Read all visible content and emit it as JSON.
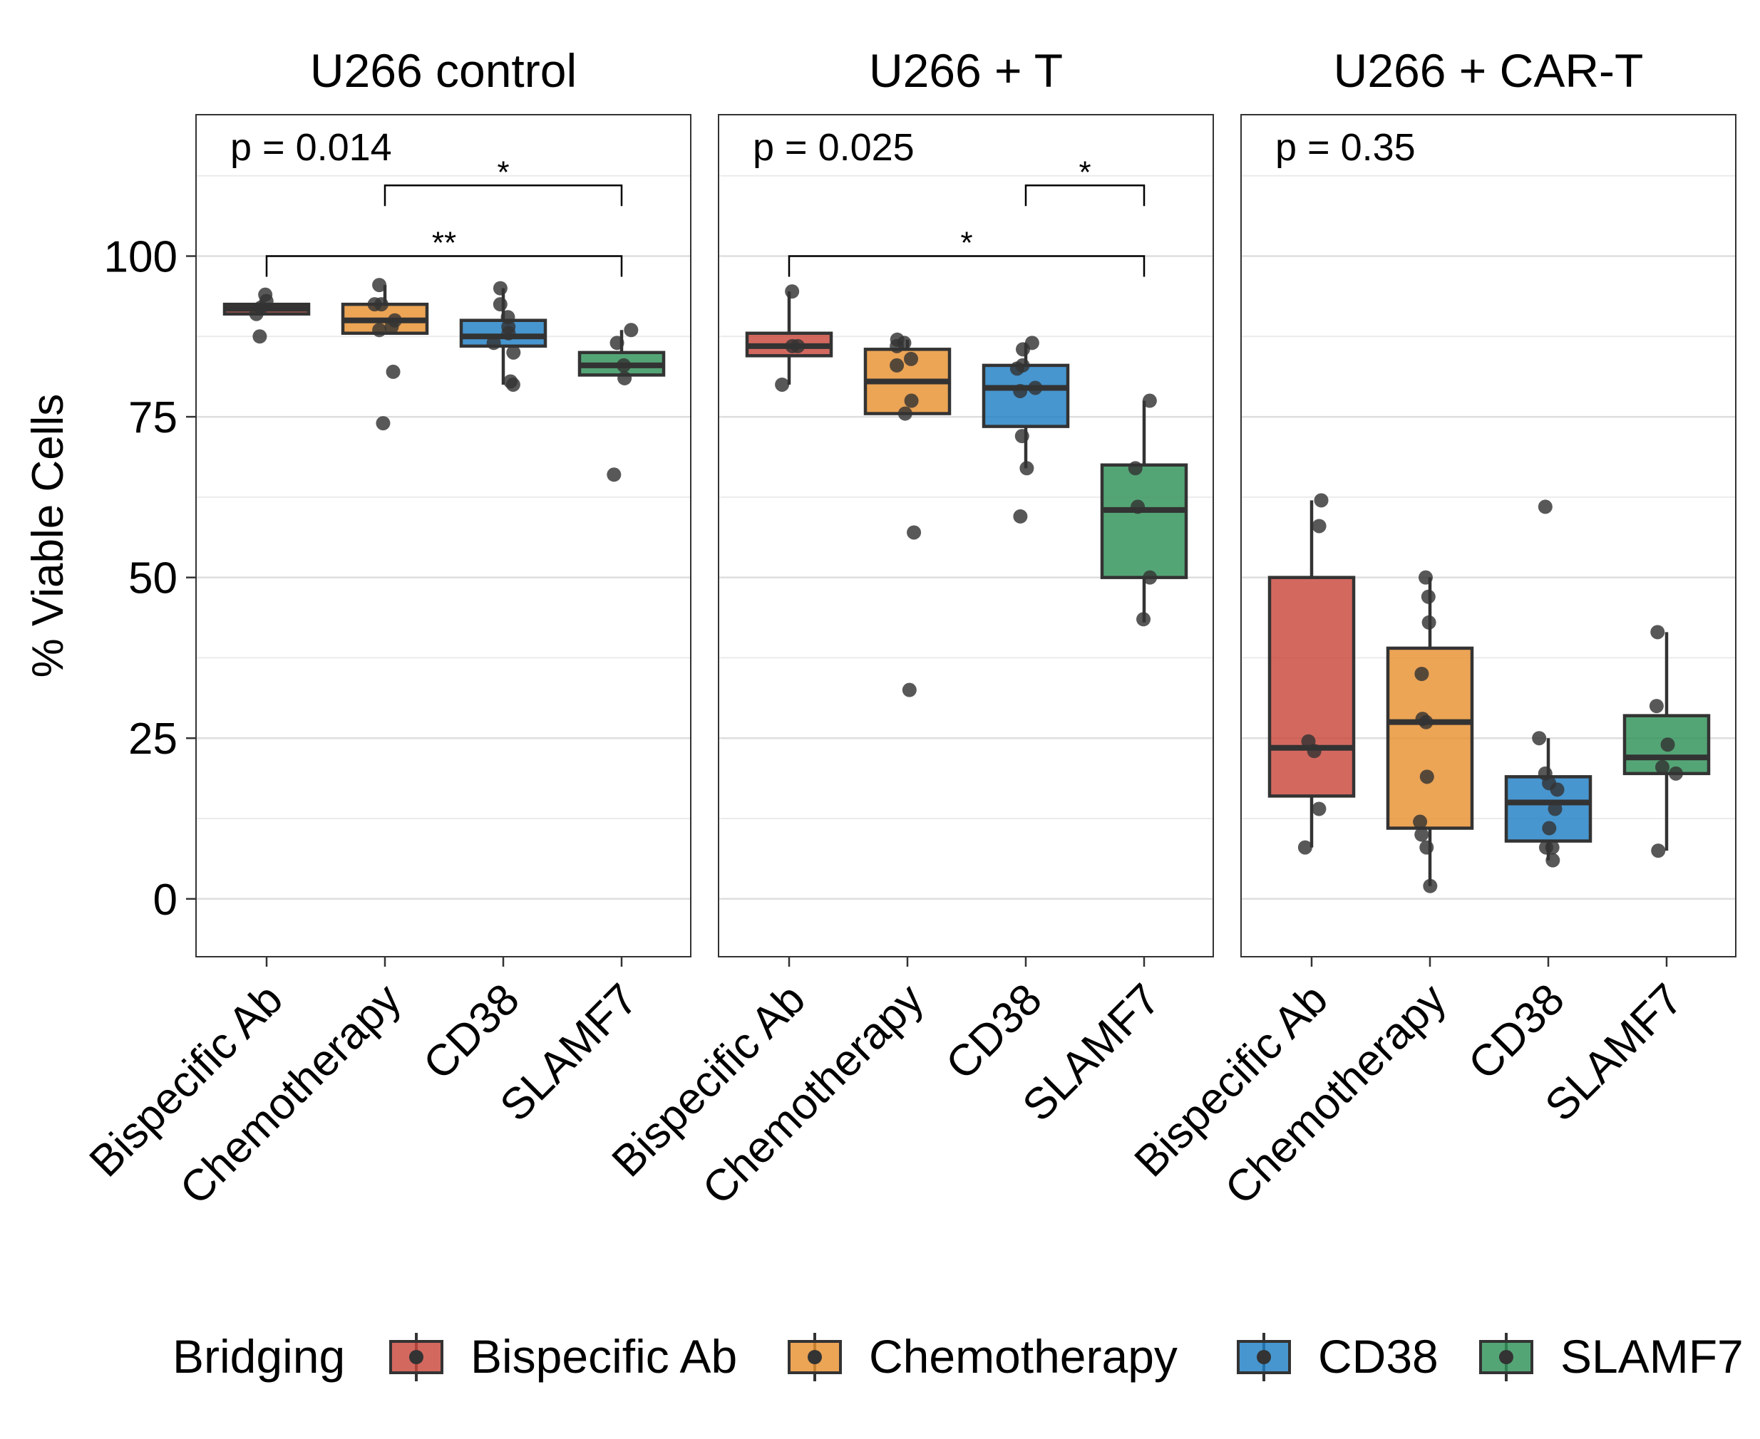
{
  "chart_data": {
    "type": "box",
    "ylabel": "% Viable Cells",
    "ylim": [
      -9,
      122
    ],
    "yticks": [
      0,
      25,
      50,
      75,
      100
    ],
    "categories": [
      "Bispecific Ab",
      "Chemotherapy",
      "CD38",
      "SLAMF7"
    ],
    "legend": {
      "title": "Bridging",
      "position": "bottom",
      "entries": [
        "Bispecific Ab",
        "Chemotherapy",
        "CD38",
        "SLAMF7"
      ]
    },
    "colors": {
      "Bispecific Ab": "#c9473c",
      "Chemotherapy": "#e8902f",
      "CD38": "#1f7fc4",
      "SLAMF7": "#2e9158"
    },
    "grid": "horizontal",
    "panels": [
      {
        "title": "U266 control",
        "pvalue": "p = 0.014",
        "brackets": [
          {
            "from": "Chemotherapy",
            "to": "SLAMF7",
            "y": 111,
            "label": "*"
          },
          {
            "from": "Bispecific Ab",
            "to": "SLAMF7",
            "y": 100,
            "label": "**"
          }
        ],
        "boxes": [
          {
            "category": "Bispecific Ab",
            "q1": 91,
            "median": 91.8,
            "q3": 92.5,
            "whisker_low": 91,
            "whisker_high": 92.5,
            "points": [
              94,
              93,
              92,
              91,
              87.5
            ]
          },
          {
            "category": "Chemotherapy",
            "q1": 88,
            "median": 90,
            "q3": 92.5,
            "whisker_low": 88,
            "whisker_high": 95.5,
            "points": [
              95.5,
              92.5,
              92.5,
              90,
              89,
              88.5,
              82,
              74
            ]
          },
          {
            "category": "CD38",
            "q1": 86,
            "median": 87.5,
            "q3": 90,
            "whisker_low": 80,
            "whisker_high": 95,
            "points": [
              95,
              92.5,
              90.5,
              89,
              88,
              86.5,
              85,
              80.5,
              80
            ]
          },
          {
            "category": "SLAMF7",
            "q1": 81.5,
            "median": 83,
            "q3": 85,
            "whisker_low": 81.5,
            "whisker_high": 88.5,
            "points": [
              88.5,
              86.5,
              83,
              81,
              66
            ]
          }
        ]
      },
      {
        "title": "U266 + T",
        "pvalue": "p = 0.025",
        "brackets": [
          {
            "from": "CD38",
            "to": "SLAMF7",
            "y": 111,
            "label": "*"
          },
          {
            "from": "Bispecific Ab",
            "to": "SLAMF7",
            "y": 100,
            "label": "*"
          }
        ],
        "boxes": [
          {
            "category": "Bispecific Ab",
            "q1": 84.5,
            "median": 86,
            "q3": 88,
            "whisker_low": 80,
            "whisker_high": 94.5,
            "points": [
              94.5,
              86,
              86,
              80
            ]
          },
          {
            "category": "Chemotherapy",
            "q1": 75.5,
            "median": 80.5,
            "q3": 85.5,
            "whisker_low": 75.5,
            "whisker_high": 87,
            "points": [
              87,
              86.5,
              86,
              84,
              83,
              77.5,
              75.5,
              57,
              32.5
            ]
          },
          {
            "category": "CD38",
            "q1": 73.5,
            "median": 79.5,
            "q3": 83,
            "whisker_low": 67,
            "whisker_high": 86.5,
            "points": [
              86.5,
              85.5,
              83,
              82.5,
              79.5,
              79,
              72,
              67,
              59.5
            ]
          },
          {
            "category": "SLAMF7",
            "q1": 50,
            "median": 60.5,
            "q3": 67.5,
            "whisker_low": 43,
            "whisker_high": 77.5,
            "points": [
              77.5,
              67,
              61,
              50,
              43.5
            ]
          }
        ]
      },
      {
        "title": "U266 + CAR-T",
        "pvalue": "p = 0.35",
        "brackets": [],
        "boxes": [
          {
            "category": "Bispecific Ab",
            "q1": 16,
            "median": 23.5,
            "q3": 50,
            "whisker_low": 8,
            "whisker_high": 62,
            "points": [
              62,
              58,
              24.5,
              23,
              14,
              8
            ]
          },
          {
            "category": "Chemotherapy",
            "q1": 11,
            "median": 27.5,
            "q3": 39,
            "whisker_low": 2,
            "whisker_high": 50,
            "points": [
              50,
              47,
              43,
              35,
              28,
              27.5,
              19,
              12,
              10,
              8,
              2
            ]
          },
          {
            "category": "CD38",
            "q1": 9,
            "median": 15,
            "q3": 19,
            "whisker_low": 6,
            "whisker_high": 25,
            "points": [
              61,
              25,
              19.5,
              18,
              17,
              14,
              11,
              8,
              8,
              6
            ]
          },
          {
            "category": "SLAMF7",
            "q1": 19.5,
            "median": 22,
            "q3": 28.5,
            "whisker_low": 7.5,
            "whisker_high": 41.5,
            "points": [
              41.5,
              30,
              24,
              20.5,
              19.5,
              7.5
            ]
          }
        ]
      }
    ]
  }
}
